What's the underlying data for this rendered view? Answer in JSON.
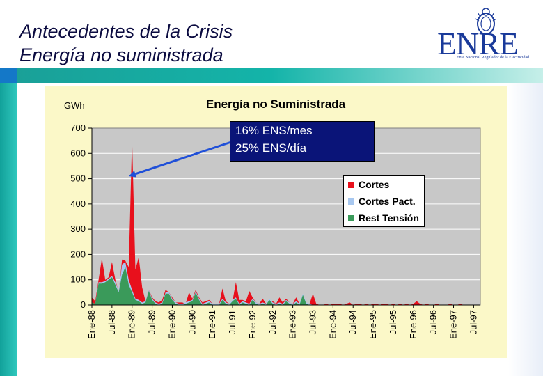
{
  "slide": {
    "title_line1": "Antecedentes de la Crisis",
    "title_line2": "Energía no suministrada",
    "logo_text": "ENRE",
    "logo_subtitle": "Ente Nacional Regulador de la Electricidad"
  },
  "colors": {
    "cortes": "#e8101c",
    "cortes_pact": "#a8c8f0",
    "rest_tension": "#3a9a5a",
    "plot_bg": "#c8c8c8",
    "panel_bg": "#fbf8c8",
    "annotation_bg": "#0a1478",
    "arrow": "#2050d8"
  },
  "chart_data": {
    "type": "area",
    "title": "Energía no Suministrada",
    "ylabel": "GWh",
    "ylim": [
      0,
      700
    ],
    "yticks": [
      0,
      100,
      200,
      300,
      400,
      500,
      600,
      700
    ],
    "xlim": [
      0,
      116
    ],
    "x_tick_labels": [
      "Ene-88",
      "Jul-88",
      "Ene-89",
      "Jul-89",
      "Ene-90",
      "Jul-90",
      "Ene-91",
      "Jul-91",
      "Ene-92",
      "Jul-92",
      "Ene-93",
      "Jul-93",
      "Ene-94",
      "Jul-94",
      "Ene-95",
      "Jul-95",
      "Ene-96",
      "Jul-96",
      "Ene-97",
      "Jul-97"
    ],
    "x_tick_months": [
      0,
      6,
      12,
      18,
      24,
      30,
      36,
      42,
      48,
      54,
      60,
      66,
      72,
      78,
      84,
      90,
      96,
      102,
      108,
      114
    ],
    "annotation": {
      "line1": "16% ENS/mes",
      "line2": "25% ENS/día",
      "points_to": {
        "month": 11,
        "value": 510
      }
    },
    "legend": [
      "Cortes",
      "Cortes Pact.",
      "Rest Tensión"
    ],
    "legend_position": "right",
    "series": [
      {
        "name": "Rest Tensión",
        "points": [
          [
            0,
            10
          ],
          [
            1,
            5
          ],
          [
            2,
            85
          ],
          [
            3,
            85
          ],
          [
            4,
            90
          ],
          [
            5,
            100
          ],
          [
            6,
            110
          ],
          [
            7,
            80
          ],
          [
            8,
            50
          ],
          [
            9,
            120
          ],
          [
            10,
            150
          ],
          [
            11,
            80
          ],
          [
            12,
            50
          ],
          [
            13,
            20
          ],
          [
            14,
            15
          ],
          [
            15,
            5
          ],
          [
            16,
            10
          ],
          [
            17,
            55
          ],
          [
            18,
            20
          ],
          [
            19,
            5
          ],
          [
            20,
            0
          ],
          [
            21,
            5
          ],
          [
            22,
            45
          ],
          [
            23,
            45
          ],
          [
            24,
            20
          ],
          [
            25,
            5
          ],
          [
            26,
            0
          ],
          [
            27,
            0
          ],
          [
            28,
            5
          ],
          [
            29,
            10
          ],
          [
            30,
            15
          ],
          [
            31,
            50
          ],
          [
            32,
            20
          ],
          [
            33,
            0
          ],
          [
            34,
            5
          ],
          [
            35,
            10
          ],
          [
            36,
            0
          ],
          [
            37,
            0
          ],
          [
            38,
            0
          ],
          [
            39,
            20
          ],
          [
            40,
            5
          ],
          [
            41,
            0
          ],
          [
            42,
            15
          ],
          [
            43,
            25
          ],
          [
            44,
            0
          ],
          [
            45,
            10
          ],
          [
            46,
            5
          ],
          [
            47,
            0
          ],
          [
            48,
            20
          ],
          [
            49,
            5
          ],
          [
            50,
            0
          ],
          [
            51,
            5
          ],
          [
            52,
            0
          ],
          [
            53,
            20
          ],
          [
            54,
            5
          ],
          [
            55,
            0
          ],
          [
            56,
            5
          ],
          [
            57,
            0
          ],
          [
            58,
            15
          ],
          [
            59,
            5
          ],
          [
            60,
            0
          ],
          [
            61,
            10
          ],
          [
            62,
            0
          ],
          [
            63,
            40
          ],
          [
            64,
            5
          ],
          [
            65,
            0
          ],
          [
            66,
            0
          ],
          [
            116,
            0
          ]
        ]
      },
      {
        "name": "Cortes Pact.",
        "points": [
          [
            0,
            10
          ],
          [
            1,
            5
          ],
          [
            2,
            90
          ],
          [
            3,
            90
          ],
          [
            4,
            95
          ],
          [
            5,
            105
          ],
          [
            6,
            115
          ],
          [
            7,
            90
          ],
          [
            8,
            55
          ],
          [
            9,
            160
          ],
          [
            10,
            170
          ],
          [
            11,
            100
          ],
          [
            12,
            60
          ],
          [
            13,
            25
          ],
          [
            14,
            20
          ],
          [
            15,
            10
          ],
          [
            16,
            15
          ],
          [
            17,
            60
          ],
          [
            18,
            25
          ],
          [
            19,
            10
          ],
          [
            20,
            5
          ],
          [
            21,
            10
          ],
          [
            22,
            50
          ],
          [
            23,
            50
          ],
          [
            24,
            25
          ],
          [
            25,
            10
          ],
          [
            26,
            5
          ],
          [
            27,
            5
          ],
          [
            28,
            10
          ],
          [
            29,
            15
          ],
          [
            30,
            20
          ],
          [
            31,
            55
          ],
          [
            32,
            25
          ],
          [
            33,
            5
          ],
          [
            34,
            10
          ],
          [
            35,
            15
          ],
          [
            36,
            5
          ],
          [
            37,
            5
          ],
          [
            38,
            5
          ],
          [
            39,
            25
          ],
          [
            40,
            10
          ],
          [
            41,
            5
          ],
          [
            42,
            20
          ],
          [
            43,
            30
          ],
          [
            44,
            5
          ],
          [
            45,
            15
          ],
          [
            46,
            10
          ],
          [
            47,
            5
          ],
          [
            48,
            25
          ],
          [
            49,
            10
          ],
          [
            50,
            5
          ],
          [
            51,
            10
          ],
          [
            52,
            5
          ],
          [
            53,
            25
          ],
          [
            54,
            10
          ],
          [
            55,
            5
          ],
          [
            56,
            10
          ],
          [
            57,
            5
          ],
          [
            58,
            20
          ],
          [
            59,
            10
          ],
          [
            60,
            5
          ],
          [
            61,
            15
          ],
          [
            62,
            5
          ],
          [
            63,
            45
          ],
          [
            64,
            10
          ],
          [
            65,
            5
          ],
          [
            66,
            0
          ],
          [
            116,
            0
          ]
        ]
      },
      {
        "name": "Cortes",
        "points": [
          [
            0,
            30
          ],
          [
            1,
            15
          ],
          [
            2,
            100
          ],
          [
            3,
            185
          ],
          [
            4,
            100
          ],
          [
            5,
            110
          ],
          [
            6,
            170
          ],
          [
            7,
            100
          ],
          [
            8,
            50
          ],
          [
            9,
            180
          ],
          [
            10,
            175
          ],
          [
            11,
            150
          ],
          [
            12,
            660
          ],
          [
            13,
            140
          ],
          [
            14,
            190
          ],
          [
            15,
            70
          ],
          [
            16,
            15
          ],
          [
            17,
            60
          ],
          [
            18,
            30
          ],
          [
            19,
            15
          ],
          [
            20,
            10
          ],
          [
            21,
            20
          ],
          [
            22,
            60
          ],
          [
            23,
            50
          ],
          [
            24,
            30
          ],
          [
            25,
            10
          ],
          [
            26,
            10
          ],
          [
            27,
            10
          ],
          [
            28,
            5
          ],
          [
            29,
            50
          ],
          [
            30,
            25
          ],
          [
            31,
            60
          ],
          [
            32,
            30
          ],
          [
            33,
            10
          ],
          [
            34,
            15
          ],
          [
            35,
            20
          ],
          [
            36,
            5
          ],
          [
            37,
            5
          ],
          [
            38,
            5
          ],
          [
            39,
            65
          ],
          [
            40,
            15
          ],
          [
            41,
            5
          ],
          [
            42,
            15
          ],
          [
            43,
            90
          ],
          [
            44,
            20
          ],
          [
            45,
            20
          ],
          [
            46,
            15
          ],
          [
            47,
            55
          ],
          [
            48,
            30
          ],
          [
            49,
            10
          ],
          [
            50,
            5
          ],
          [
            51,
            25
          ],
          [
            52,
            5
          ],
          [
            53,
            10
          ],
          [
            54,
            15
          ],
          [
            55,
            5
          ],
          [
            56,
            30
          ],
          [
            57,
            10
          ],
          [
            58,
            25
          ],
          [
            59,
            10
          ],
          [
            60,
            5
          ],
          [
            61,
            30
          ],
          [
            62,
            5
          ],
          [
            63,
            10
          ],
          [
            64,
            5
          ],
          [
            65,
            5
          ],
          [
            66,
            45
          ],
          [
            67,
            5
          ],
          [
            68,
            0
          ],
          [
            69,
            0
          ],
          [
            70,
            5
          ],
          [
            71,
            0
          ],
          [
            72,
            5
          ],
          [
            73,
            5
          ],
          [
            74,
            5
          ],
          [
            75,
            0
          ],
          [
            76,
            5
          ],
          [
            77,
            10
          ],
          [
            78,
            0
          ],
          [
            79,
            5
          ],
          [
            80,
            5
          ],
          [
            81,
            0
          ],
          [
            82,
            5
          ],
          [
            83,
            0
          ],
          [
            84,
            5
          ],
          [
            85,
            5
          ],
          [
            86,
            0
          ],
          [
            87,
            5
          ],
          [
            88,
            5
          ],
          [
            89,
            0
          ],
          [
            90,
            5
          ],
          [
            91,
            0
          ],
          [
            92,
            5
          ],
          [
            93,
            0
          ],
          [
            94,
            5
          ],
          [
            95,
            0
          ],
          [
            96,
            5
          ],
          [
            97,
            15
          ],
          [
            98,
            5
          ],
          [
            99,
            0
          ],
          [
            100,
            5
          ],
          [
            101,
            0
          ],
          [
            102,
            0
          ],
          [
            103,
            5
          ],
          [
            104,
            0
          ],
          [
            105,
            0
          ],
          [
            106,
            0
          ],
          [
            107,
            5
          ],
          [
            108,
            0
          ],
          [
            109,
            0
          ],
          [
            110,
            5
          ],
          [
            111,
            0
          ],
          [
            112,
            0
          ],
          [
            113,
            0
          ],
          [
            114,
            0
          ],
          [
            115,
            0
          ],
          [
            116,
            0
          ]
        ]
      }
    ]
  }
}
